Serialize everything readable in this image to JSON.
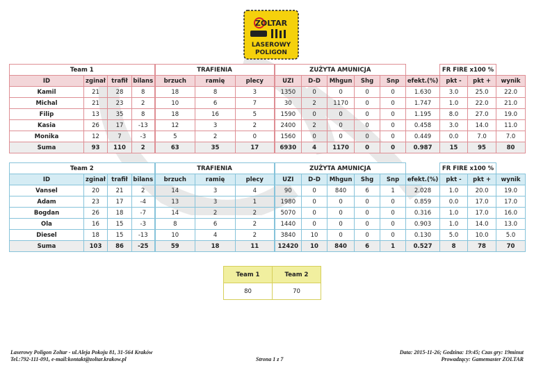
{
  "logo": {
    "text": "ZOLTAR LASEROWY POLIGON",
    "colors": {
      "yellow": "#f5d10c",
      "red": "#d4202a"
    }
  },
  "colors": {
    "team1_border": "#de8e94",
    "team1_header": "#f3d6d9",
    "team2_border": "#86c3da",
    "team2_header": "#d5ecf4",
    "sum_row": "#ededed",
    "summary_header": "#f1ef9f"
  },
  "columns": [
    "ID",
    "zginał",
    "trafił",
    "bilans",
    "brzuch",
    "ramię",
    "plecy",
    "UZI",
    "D-D",
    "Mhgun",
    "Shg",
    "Snp",
    "efekt.(%)",
    "pkt -",
    "pkt +",
    "wynik"
  ],
  "groups": {
    "hits": "TRAFIENIA",
    "ammo": "ZUŻYTA AMUNICJA",
    "frfire": "FR FIRE x100 %"
  },
  "teams": [
    {
      "title": "Team 1",
      "rows": [
        [
          "Kamil",
          "21",
          "28",
          "8",
          "18",
          "8",
          "3",
          "1350",
          "0",
          "0",
          "0",
          "0",
          "1.630",
          "3.0",
          "25.0",
          "22.0"
        ],
        [
          "Michal",
          "21",
          "23",
          "2",
          "10",
          "6",
          "7",
          "30",
          "2",
          "1170",
          "0",
          "0",
          "1.747",
          "1.0",
          "22.0",
          "21.0"
        ],
        [
          "Filip",
          "13",
          "35",
          "8",
          "18",
          "16",
          "5",
          "1590",
          "0",
          "0",
          "0",
          "0",
          "1.195",
          "8.0",
          "27.0",
          "19.0"
        ],
        [
          "Kasia",
          "26",
          "17",
          "-13",
          "12",
          "3",
          "2",
          "2400",
          "2",
          "0",
          "0",
          "0",
          "0.458",
          "3.0",
          "14.0",
          "11.0"
        ],
        [
          "Monika",
          "12",
          "7",
          "-3",
          "5",
          "2",
          "0",
          "1560",
          "0",
          "0",
          "0",
          "0",
          "0.449",
          "0.0",
          "7.0",
          "7.0"
        ]
      ],
      "sum": [
        "Suma",
        "93",
        "110",
        "2",
        "63",
        "35",
        "17",
        "6930",
        "4",
        "1170",
        "0",
        "0",
        "0.987",
        "15",
        "95",
        "80"
      ]
    },
    {
      "title": "Team 2",
      "rows": [
        [
          "Vansel",
          "20",
          "21",
          "2",
          "14",
          "3",
          "4",
          "90",
          "0",
          "840",
          "6",
          "1",
          "2.028",
          "1.0",
          "20.0",
          "19.0"
        ],
        [
          "Adam",
          "23",
          "17",
          "-4",
          "13",
          "3",
          "1",
          "1980",
          "0",
          "0",
          "0",
          "0",
          "0.859",
          "0.0",
          "17.0",
          "17.0"
        ],
        [
          "Bogdan",
          "26",
          "18",
          "-7",
          "14",
          "2",
          "2",
          "5070",
          "0",
          "0",
          "0",
          "0",
          "0.316",
          "1.0",
          "17.0",
          "16.0"
        ],
        [
          "Ola",
          "16",
          "15",
          "-3",
          "8",
          "6",
          "2",
          "1440",
          "0",
          "0",
          "0",
          "0",
          "0.903",
          "1.0",
          "14.0",
          "13.0"
        ],
        [
          "Diesel",
          "18",
          "15",
          "-13",
          "10",
          "4",
          "2",
          "3840",
          "10",
          "0",
          "0",
          "0",
          "0.130",
          "5.0",
          "10.0",
          "5.0"
        ]
      ],
      "sum": [
        "Suma",
        "103",
        "86",
        "-25",
        "59",
        "18",
        "11",
        "12420",
        "10",
        "840",
        "6",
        "1",
        "0.527",
        "8",
        "78",
        "70"
      ]
    }
  ],
  "summary": {
    "headers": [
      "Team 1",
      "Team 2"
    ],
    "values": [
      "80",
      "70"
    ]
  },
  "footer": {
    "left1": "Laserowy Poligon Zoltar - ul.Aleja Pokoju 81, 31-564 Kraków",
    "left2": "Tel.:792-111-091, e-mail:kontakt@zoltar.krakow.pl",
    "center": "Strona 1 z 7",
    "right1": "Data: 2015-11-26; Godzina: 19:45; Czas gry: 19minut",
    "right2": "Prowadzący: Gamemaster ZOLTAR"
  }
}
